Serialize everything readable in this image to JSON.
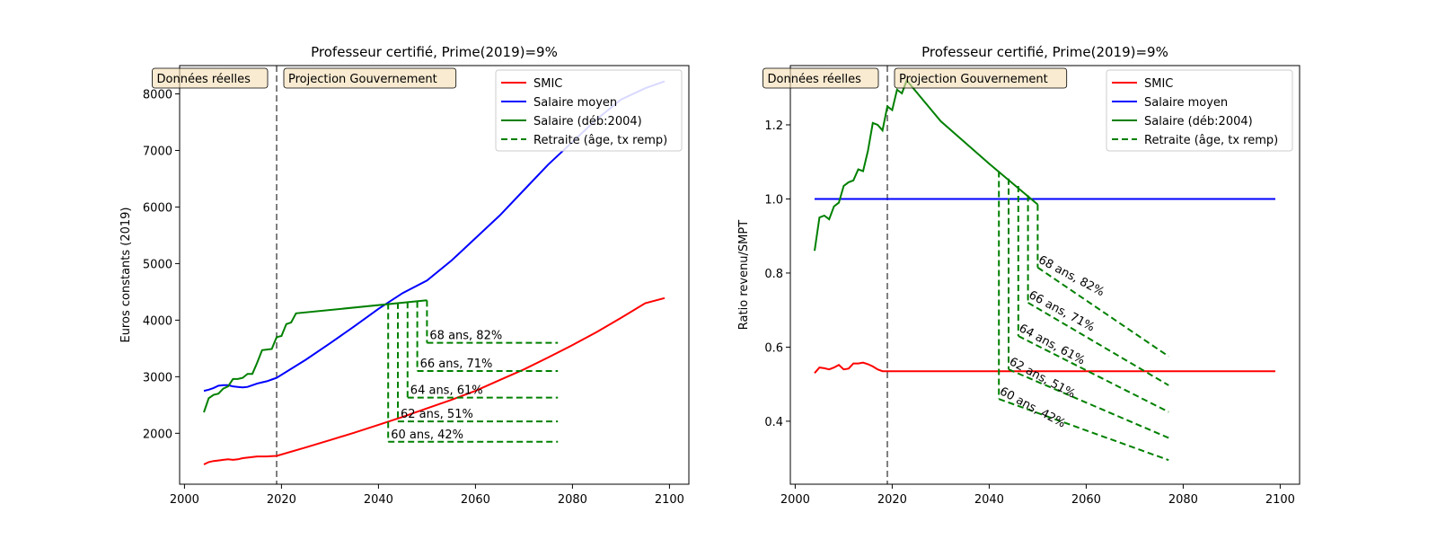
{
  "chart_data": [
    {
      "type": "line",
      "title": "Professeur certifié, Prime(2019)=9%",
      "xlabel": "",
      "ylabel": "Euros constants (2019)",
      "xlim": [
        1999,
        2104
      ],
      "ylim": [
        1100,
        8500
      ],
      "xticks": [
        2000,
        2020,
        2040,
        2060,
        2080,
        2100
      ],
      "yticks": [
        2000,
        3000,
        4000,
        5000,
        6000,
        7000,
        8000
      ],
      "grid": false,
      "legend_position": "top-right",
      "vline_x": 2019,
      "annotations": [
        "Données réelles",
        "Projection Gouvernement"
      ],
      "series": [
        {
          "name": "SMIC",
          "color": "#ff0000",
          "style": "solid",
          "x": [
            2004,
            2005,
            2006,
            2007,
            2008,
            2009,
            2010,
            2011,
            2012,
            2013,
            2014,
            2015,
            2016,
            2017,
            2018,
            2019,
            2025,
            2030,
            2035,
            2040,
            2045,
            2050,
            2055,
            2060,
            2065,
            2070,
            2075,
            2080,
            2085,
            2090,
            2095,
            2099
          ],
          "y": [
            1450,
            1490,
            1510,
            1520,
            1530,
            1540,
            1530,
            1540,
            1560,
            1570,
            1580,
            1590,
            1590,
            1590,
            1595,
            1600,
            1750,
            1880,
            2010,
            2150,
            2290,
            2440,
            2590,
            2750,
            2940,
            3130,
            3340,
            3560,
            3790,
            4040,
            4300,
            4390
          ]
        },
        {
          "name": "Salaire moyen",
          "color": "#0000ff",
          "style": "solid",
          "x": [
            2004,
            2005,
            2006,
            2007,
            2008,
            2009,
            2010,
            2011,
            2012,
            2013,
            2014,
            2015,
            2016,
            2017,
            2018,
            2019,
            2025,
            2030,
            2035,
            2040,
            2045,
            2050,
            2055,
            2060,
            2065,
            2070,
            2075,
            2080,
            2085,
            2090,
            2095,
            2099
          ],
          "y": [
            2750,
            2770,
            2800,
            2840,
            2850,
            2850,
            2830,
            2820,
            2810,
            2820,
            2850,
            2880,
            2900,
            2920,
            2950,
            2980,
            3300,
            3590,
            3890,
            4200,
            4480,
            4700,
            5050,
            5450,
            5850,
            6300,
            6750,
            7150,
            7550,
            7900,
            8100,
            8220
          ]
        },
        {
          "name": "Salaire (déb:2004)",
          "color": "#008000",
          "style": "solid",
          "x": [
            2004,
            2005,
            2006,
            2007,
            2008,
            2009,
            2010,
            2011,
            2012,
            2013,
            2014,
            2015,
            2016,
            2017,
            2018,
            2019,
            2020,
            2021,
            2022,
            2023,
            2050
          ],
          "y": [
            2370,
            2620,
            2680,
            2700,
            2790,
            2830,
            2960,
            2960,
            2980,
            3050,
            3050,
            3250,
            3470,
            3480,
            3490,
            3700,
            3720,
            3930,
            3960,
            4120,
            4350
          ]
        },
        {
          "name": "Retraite (âge, tx remp)",
          "color": "#008000",
          "style": "dashed",
          "groups": [
            {
              "label": "60 ans, 42%",
              "start": 2042,
              "end": 2077,
              "drop_from": 4300,
              "y_start": 1850,
              "y_end": 1850
            },
            {
              "label": "62 ans, 51%",
              "start": 2044,
              "end": 2077,
              "drop_from": 4310,
              "y_start": 2210,
              "y_end": 2210
            },
            {
              "label": "64 ans, 61%",
              "start": 2046,
              "end": 2077,
              "drop_from": 4320,
              "y_start": 2630,
              "y_end": 2630
            },
            {
              "label": "66 ans, 71%",
              "start": 2048,
              "end": 2077,
              "drop_from": 4330,
              "y_start": 3100,
              "y_end": 3100
            },
            {
              "label": "68 ans, 82%",
              "start": 2050,
              "end": 2077,
              "drop_from": 4350,
              "y_start": 3600,
              "y_end": 3600
            }
          ]
        }
      ]
    },
    {
      "type": "line",
      "title": "Professeur certifié, Prime(2019)=9%",
      "xlabel": "",
      "ylabel": "Ratio revenu/SMPT",
      "xlim": [
        1999,
        2104
      ],
      "ylim": [
        0.23,
        1.36
      ],
      "xticks": [
        2000,
        2020,
        2040,
        2060,
        2080,
        2100
      ],
      "yticks": [
        0.4,
        0.6,
        0.8,
        1.0,
        1.2
      ],
      "grid": false,
      "legend_position": "top-right",
      "vline_x": 2019,
      "annotations": [
        "Données réelles",
        "Projection Gouvernement"
      ],
      "series": [
        {
          "name": "SMIC",
          "color": "#ff0000",
          "style": "solid",
          "x": [
            2004,
            2005,
            2006,
            2007,
            2008,
            2009,
            2010,
            2011,
            2012,
            2013,
            2014,
            2015,
            2016,
            2017,
            2018,
            2019,
            2099
          ],
          "y": [
            0.53,
            0.545,
            0.543,
            0.54,
            0.545,
            0.552,
            0.54,
            0.542,
            0.556,
            0.556,
            0.558,
            0.554,
            0.548,
            0.54,
            0.535,
            0.535,
            0.535
          ]
        },
        {
          "name": "Salaire moyen",
          "color": "#0000ff",
          "style": "solid",
          "x": [
            2004,
            2099
          ],
          "y": [
            1.0,
            1.0
          ]
        },
        {
          "name": "Salaire (déb:2004)",
          "color": "#008000",
          "style": "solid",
          "x": [
            2004,
            2005,
            2006,
            2007,
            2008,
            2009,
            2010,
            2011,
            2012,
            2013,
            2014,
            2015,
            2016,
            2017,
            2018,
            2019,
            2020,
            2021,
            2022,
            2023,
            2030,
            2040,
            2050
          ],
          "y": [
            0.86,
            0.95,
            0.955,
            0.945,
            0.98,
            0.99,
            1.035,
            1.045,
            1.05,
            1.08,
            1.075,
            1.13,
            1.205,
            1.2,
            1.185,
            1.25,
            1.24,
            1.295,
            1.285,
            1.32,
            1.21,
            1.095,
            0.985
          ]
        },
        {
          "name": "Retraite (âge, tx remp)",
          "color": "#008000",
          "style": "dashed",
          "groups": [
            {
              "label": "60 ans, 42%",
              "start": 2042,
              "end": 2077,
              "drop_from": 1.075,
              "y_start": 0.46,
              "y_end": 0.295
            },
            {
              "label": "62 ans, 51%",
              "start": 2044,
              "end": 2077,
              "drop_from": 1.055,
              "y_start": 0.54,
              "y_end": 0.355
            },
            {
              "label": "64 ans, 61%",
              "start": 2046,
              "end": 2077,
              "drop_from": 1.035,
              "y_start": 0.63,
              "y_end": 0.425
            },
            {
              "label": "66 ans, 71%",
              "start": 2048,
              "end": 2077,
              "drop_from": 1.01,
              "y_start": 0.72,
              "y_end": 0.497
            },
            {
              "label": "68 ans, 82%",
              "start": 2050,
              "end": 2077,
              "drop_from": 0.985,
              "y_start": 0.815,
              "y_end": 0.575
            }
          ]
        }
      ]
    }
  ]
}
